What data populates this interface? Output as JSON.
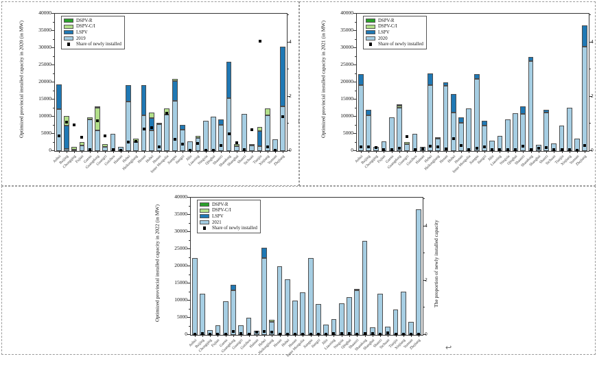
{
  "page": {
    "paragraph_mark": "↩"
  },
  "colors": {
    "dspv_r": "#2ca02c",
    "dspv_ci": "#b2df8a",
    "lspv": "#1f78b4",
    "base_year": "#a6cee3",
    "share_marker": "#000000",
    "panel_border": "#9a9a9a"
  },
  "chart_data": [
    {
      "type": "bar",
      "panel": "top-left",
      "title": "",
      "ylabel": "Optimized provincial installed capacity in 2020 (in MW)",
      "y2label": "The proportion of newly installed capacity",
      "ylim": [
        0,
        40000
      ],
      "y_ticks": [
        0,
        5000,
        10000,
        15000,
        20000,
        25000,
        30000,
        35000,
        40000
      ],
      "y2lim": [
        0,
        5
      ],
      "y2_ticks": [
        0,
        2,
        4
      ],
      "grid": false,
      "legend_position": "top-left",
      "legend_order": [
        "DSPV-R",
        "DSPV-C/I",
        "LSPV",
        "2019",
        "Share of newly installed"
      ],
      "categories": [
        "Anhui",
        "Beijing",
        "Chongqing",
        "Fujian",
        "Gansu",
        "Guangdong",
        "Guangxi",
        "Guizhou",
        "Hainan",
        "Hebei",
        "Heilongjiang",
        "Henan",
        "Hubei",
        "Hunan",
        "Inner Mongolia",
        "Jiangsu",
        "Jiangxi",
        "Jilin",
        "Liaoning",
        "Ningxia",
        "Qinghai",
        "Shaanxi",
        "Shandong",
        "Shanghai",
        "Shanxi",
        "Sichuan",
        "Tianjin",
        "Xinjiang",
        "Yunnan",
        "Zhejiang"
      ],
      "series": [
        {
          "name": "2019",
          "color": "#a6cee3",
          "values": [
            12200,
            700,
            400,
            1700,
            9300,
            6000,
            1200,
            5100,
            1300,
            14500,
            2600,
            10400,
            6000,
            7900,
            10700,
            14600,
            6300,
            2800,
            3900,
            8800,
            10000,
            7700,
            15500,
            1500,
            10800,
            1600,
            1500,
            10400,
            3400,
            13000
          ]
        },
        {
          "name": "LSPV",
          "color": "#1f78b4",
          "values": [
            7200,
            6700,
            0,
            0,
            0,
            0,
            0,
            0,
            0,
            4800,
            0,
            8800,
            3600,
            0,
            0,
            5800,
            1400,
            0,
            0,
            0,
            0,
            1600,
            10500,
            0,
            0,
            0,
            4300,
            0,
            0,
            17500
          ]
        },
        {
          "name": "DSPV-C/I",
          "color": "#b2df8a",
          "values": [
            0,
            2900,
            900,
            900,
            500,
            6700,
            800,
            0,
            0,
            0,
            1000,
            0,
            1600,
            400,
            1700,
            700,
            0,
            0,
            500,
            0,
            0,
            0,
            0,
            600,
            0,
            500,
            1200,
            2000,
            0,
            0
          ]
        },
        {
          "name": "DSPV-R",
          "color": "#2ca02c",
          "values": [
            0,
            0,
            0,
            0,
            0,
            300,
            0,
            0,
            0,
            0,
            0,
            0,
            0,
            0,
            0,
            0,
            0,
            0,
            0,
            0,
            0,
            0,
            0,
            0,
            0,
            0,
            0,
            0,
            0,
            0
          ]
        }
      ],
      "scatter": {
        "name": "Share of newly installed",
        "color": "#000000",
        "axis": "y2",
        "values": [
          0.55,
          1.05,
          0.95,
          0.5,
          0.06,
          1.1,
          0.55,
          0.04,
          0.03,
          0.32,
          0.35,
          0.82,
          0.85,
          0.15,
          1.38,
          0.42,
          0.25,
          0.03,
          0.28,
          0.03,
          0.03,
          0.2,
          0.62,
          0.3,
          0.05,
          0.78,
          4.05,
          0.15,
          0.02,
          1.26
        ]
      }
    },
    {
      "type": "bar",
      "panel": "top-right",
      "title": "",
      "ylabel": "Optimized provincial installed capacity in 2021 (in MW)",
      "y2label": "The proportion of newly installed capacity",
      "ylim": [
        0,
        40000
      ],
      "y_ticks": [
        0,
        5000,
        10000,
        15000,
        20000,
        25000,
        30000,
        35000,
        40000
      ],
      "y2lim": [
        0,
        5
      ],
      "y2_ticks": [
        0,
        2,
        4
      ],
      "grid": false,
      "legend_position": "top-left",
      "legend_order": [
        "DSPV-R",
        "DSPV-C/I",
        "LSPV",
        "2020",
        "Share of newly installed"
      ],
      "categories": [
        "Anhui",
        "Beijing",
        "Chongqing",
        "Fujian",
        "Gansu",
        "Guangdong",
        "Guangxi",
        "Guizhou",
        "Hainan",
        "Hebei",
        "Heilongjiang",
        "Henan",
        "Hubei",
        "Hunan",
        "Inner Mongolia",
        "Jiangsu",
        "Jiangxi",
        "Jilin",
        "Liaoning",
        "Ningxia",
        "Qinghai",
        "Shaanxi",
        "Shandong",
        "Shanghai",
        "Shanxi",
        "Sichuan",
        "Tianjin",
        "Xinjiang",
        "Yunnan",
        "Zhejiang"
      ],
      "series": [
        {
          "name": "2020",
          "color": "#a6cee3",
          "values": [
            19300,
            10400,
            1300,
            2800,
            9800,
            12600,
            2000,
            5100,
            1300,
            19200,
            3700,
            19000,
            11200,
            8300,
            12400,
            21000,
            7500,
            3000,
            4400,
            9200,
            11000,
            10800,
            26300,
            1900,
            11200,
            2300,
            7500,
            12600,
            3700,
            30500
          ]
        },
        {
          "name": "LSPV",
          "color": "#1f78b4",
          "values": [
            3100,
            1700,
            0,
            0,
            0,
            0,
            0,
            0,
            0,
            3500,
            0,
            1100,
            5400,
            1600,
            0,
            1400,
            1300,
            0,
            0,
            0,
            0,
            2300,
            1100,
            0,
            800,
            0,
            0,
            0,
            0,
            6100
          ]
        },
        {
          "name": "DSPV-C/I",
          "color": "#b2df8a",
          "values": [
            0,
            0,
            0,
            0,
            0,
            700,
            700,
            0,
            0,
            0,
            300,
            0,
            0,
            0,
            0,
            0,
            0,
            0,
            0,
            0,
            0,
            0,
            0,
            0,
            0,
            0,
            0,
            0,
            0,
            0
          ]
        },
        {
          "name": "DSPV-R",
          "color": "#2ca02c",
          "values": [
            0,
            0,
            0,
            0,
            0,
            200,
            0,
            0,
            0,
            0,
            0,
            0,
            0,
            0,
            0,
            0,
            0,
            0,
            0,
            0,
            0,
            0,
            0,
            0,
            0,
            0,
            0,
            0,
            0,
            0
          ]
        }
      ],
      "scatter": {
        "name": "Share of newly installed",
        "color": "#000000",
        "axis": "y2",
        "values": [
          0.15,
          0.15,
          0.12,
          0.05,
          0.05,
          0.1,
          0.52,
          0.05,
          0.08,
          0.18,
          0.15,
          0.08,
          0.46,
          0.2,
          0.04,
          0.1,
          0.15,
          0.05,
          0.06,
          0.04,
          0.04,
          0.17,
          0.05,
          0.1,
          0.12,
          0.06,
          0.06,
          0.04,
          0.03,
          0.2
        ]
      }
    },
    {
      "type": "bar",
      "panel": "bottom-center",
      "title": "",
      "ylabel": "Optimized provincial installed capacity in 2022 (in MW)",
      "y2label": "The proportion of newly installed capacity",
      "ylim": [
        0,
        40000
      ],
      "y_ticks": [
        0,
        5000,
        10000,
        15000,
        20000,
        25000,
        30000,
        35000,
        40000
      ],
      "y2lim": [
        0,
        5
      ],
      "y2_ticks": [
        0,
        2,
        4
      ],
      "grid": false,
      "legend_position": "top-left",
      "legend_order": [
        "DSPV-R",
        "DSPV-C/I",
        "LSPV",
        "2021",
        "Share of newly installed"
      ],
      "categories": [
        "Anhui",
        "Beijing",
        "Chongqing",
        "Fujian",
        "Gansu",
        "Guangdong",
        "Guangxi",
        "Guizhou",
        "Hainan",
        "Hebei",
        "Heilongjiang",
        "Henan",
        "Hubei",
        "Hunan",
        "Inner Mongolia",
        "Jiangsu",
        "Jiangxi",
        "Jilin",
        "Liaoning",
        "Ningxia",
        "Qinghai",
        "Shaanxi",
        "Shandong",
        "Shanghai",
        "Shanxi",
        "Sichuan",
        "Tianjin",
        "Xinjiang",
        "Yunnan",
        "Zhejiang"
      ],
      "series": [
        {
          "name": "2021",
          "color": "#a6cee3",
          "values": [
            22400,
            12100,
            1400,
            2800,
            9800,
            13000,
            2800,
            5100,
            1300,
            22400,
            3900,
            20100,
            16300,
            10000,
            12400,
            22400,
            9000,
            3000,
            4700,
            9200,
            11100,
            13100,
            27400,
            2300,
            12000,
            2400,
            7500,
            12600,
            3800,
            36700
          ]
        },
        {
          "name": "LSPV",
          "color": "#1f78b4",
          "values": [
            0,
            0,
            0,
            0,
            0,
            1700,
            0,
            0,
            0,
            3100,
            0,
            0,
            0,
            0,
            0,
            0,
            0,
            0,
            0,
            0,
            0,
            300,
            0,
            0,
            0,
            0,
            0,
            0,
            0,
            0
          ]
        },
        {
          "name": "DSPV-C/I",
          "color": "#b2df8a",
          "values": [
            0,
            0,
            0,
            0,
            0,
            0,
            0,
            0,
            0,
            0,
            600,
            0,
            0,
            0,
            0,
            0,
            0,
            0,
            0,
            0,
            0,
            0,
            0,
            0,
            0,
            0,
            0,
            0,
            0,
            0
          ]
        },
        {
          "name": "DSPV-R",
          "color": "#2ca02c",
          "values": [
            0,
            0,
            0,
            0,
            0,
            0,
            0,
            0,
            0,
            0,
            0,
            0,
            0,
            0,
            0,
            0,
            0,
            0,
            0,
            0,
            0,
            0,
            0,
            0,
            0,
            0,
            0,
            0,
            0,
            0
          ]
        }
      ],
      "scatter": {
        "name": "Share of newly installed",
        "color": "#000000",
        "axis": "y2",
        "values": [
          0.03,
          0.06,
          0.03,
          0.03,
          0.02,
          0.12,
          0.04,
          0.02,
          0.1,
          0.12,
          0.1,
          0.03,
          0.02,
          0.02,
          0.02,
          0.02,
          0.02,
          0.03,
          0.04,
          0.06,
          0.05,
          0.03,
          0.05,
          0.06,
          0.03,
          0.07,
          0.02,
          0.02,
          0.02,
          0.02
        ]
      }
    }
  ]
}
